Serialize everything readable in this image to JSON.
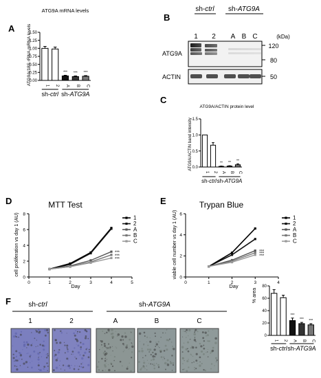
{
  "panels": {
    "A": {
      "letter": "A",
      "title": "ATG9A mRNA levels",
      "ylabel": "ATG9A/18S rRNA mRNA levels",
      "groups": [
        "sh-ctrl",
        "sh-ATG9A"
      ],
      "significance": [
        "***",
        "***",
        "***"
      ],
      "chart_data": {
        "type": "bar",
        "categories": [
          "1",
          "2",
          "A",
          "B",
          "C"
        ],
        "values": [
          1.0,
          0.98,
          0.14,
          0.12,
          0.13
        ],
        "errors": [
          0.06,
          0.06,
          0.02,
          0.02,
          0.02
        ],
        "ylim": [
          0,
          1.5
        ],
        "yticks": [
          "0.00",
          "0.25",
          "0.50",
          "0.75",
          "1.00",
          "1.25",
          "1.50"
        ],
        "fills": [
          "#ffffff",
          "#ffffff",
          "#111111",
          "#333333",
          "#777777"
        ]
      }
    },
    "B": {
      "letter": "B",
      "groups": [
        "sh-ctrl",
        "sh-ATG9A"
      ],
      "lanes": [
        "1",
        "2",
        "A",
        "B",
        "C"
      ],
      "kda_label": "(kDa)",
      "markers": [
        "120",
        "80",
        "50"
      ],
      "blot_labels": [
        "ATG9A",
        "ACTIN"
      ]
    },
    "C": {
      "letter": "C",
      "title": "ATG9A/ACTIN protein level",
      "ylabel": "ATG9A/ACTIN band intensity",
      "groups": [
        "sh-ctrl",
        "sh-ATG9A"
      ],
      "significance": [
        "**",
        "**",
        "**"
      ],
      "chart_data": {
        "type": "bar",
        "categories": [
          "1",
          "2",
          "A",
          "B",
          "C"
        ],
        "values": [
          1.0,
          0.68,
          0.02,
          0.03,
          0.07
        ],
        "errors": [
          0.0,
          0.08,
          0.01,
          0.01,
          0.03
        ],
        "ylim": [
          0,
          1.5
        ],
        "yticks": [
          "0.0",
          "0.5",
          "1.0",
          "1.5"
        ],
        "fills": [
          "#ffffff",
          "#ffffff",
          "#111111",
          "#333333",
          "#777777"
        ]
      }
    },
    "D": {
      "letter": "D",
      "title": "MTT Test",
      "xlabel": "Day",
      "ylabel": "cell proliferation vs day 1 (AU)",
      "significance": [
        "***",
        "***",
        "***"
      ],
      "chart_data": {
        "type": "line",
        "x": [
          1,
          2,
          3,
          4
        ],
        "xlim": [
          0,
          5
        ],
        "ylim": [
          0,
          8
        ],
        "xticks": [
          "0",
          "1",
          "2",
          "3",
          "4",
          "5"
        ],
        "yticks": [
          "0",
          "2",
          "4",
          "6",
          "8"
        ],
        "series": [
          {
            "name": "1",
            "values": [
              1.0,
              1.7,
              3.1,
              6.2
            ],
            "color": "#000000"
          },
          {
            "name": "2",
            "values": [
              1.0,
              1.6,
              3.0,
              6.1
            ],
            "color": "#111111"
          },
          {
            "name": "A",
            "values": [
              1.0,
              1.4,
              2.1,
              3.2
            ],
            "color": "#555555"
          },
          {
            "name": "B",
            "values": [
              1.0,
              1.3,
              1.9,
              2.8
            ],
            "color": "#777777"
          },
          {
            "name": "C",
            "values": [
              1.0,
              1.3,
              1.8,
              2.4
            ],
            "color": "#999999"
          }
        ]
      }
    },
    "E": {
      "letter": "E",
      "title": "Trypan Blue",
      "xlabel": "Day",
      "ylabel": "viable cell number vs day 1 (AU)",
      "significance": [
        "***",
        "***",
        "***"
      ],
      "chart_data": {
        "type": "line",
        "x": [
          1,
          2,
          3
        ],
        "xlim": [
          0,
          4
        ],
        "ylim": [
          0,
          6
        ],
        "xticks": [
          "0",
          "1",
          "2",
          "3",
          "4"
        ],
        "yticks": [
          "0",
          "2",
          "4",
          "6"
        ],
        "series": [
          {
            "name": "1",
            "values": [
              1.0,
              2.3,
              4.6
            ],
            "color": "#000000"
          },
          {
            "name": "2",
            "values": [
              1.0,
              2.1,
              3.6
            ],
            "color": "#111111"
          },
          {
            "name": "A",
            "values": [
              1.0,
              1.6,
              2.5
            ],
            "color": "#555555"
          },
          {
            "name": "B",
            "values": [
              1.0,
              1.5,
              2.3
            ],
            "color": "#777777"
          },
          {
            "name": "C",
            "values": [
              1.0,
              1.4,
              2.1
            ],
            "color": "#999999"
          }
        ]
      }
    },
    "F": {
      "letter": "F",
      "groups": [
        "sh-ctrl",
        "sh-ATG9A"
      ],
      "image_labels": [
        "1",
        "2",
        "A",
        "B",
        "C"
      ],
      "ylabel": "% area",
      "significance": [
        "***",
        "***",
        "***"
      ],
      "chart_data": {
        "type": "bar",
        "categories": [
          "1",
          "2",
          "A",
          "B",
          "C"
        ],
        "values": [
          68,
          61,
          24,
          19,
          17
        ],
        "errors": [
          6,
          4,
          4,
          2,
          2
        ],
        "ylim": [
          0,
          80
        ],
        "yticks": [
          "0",
          "20",
          "40",
          "60",
          "80"
        ],
        "fills": [
          "#ffffff",
          "#ffffff",
          "#111111",
          "#333333",
          "#777777"
        ]
      }
    }
  }
}
